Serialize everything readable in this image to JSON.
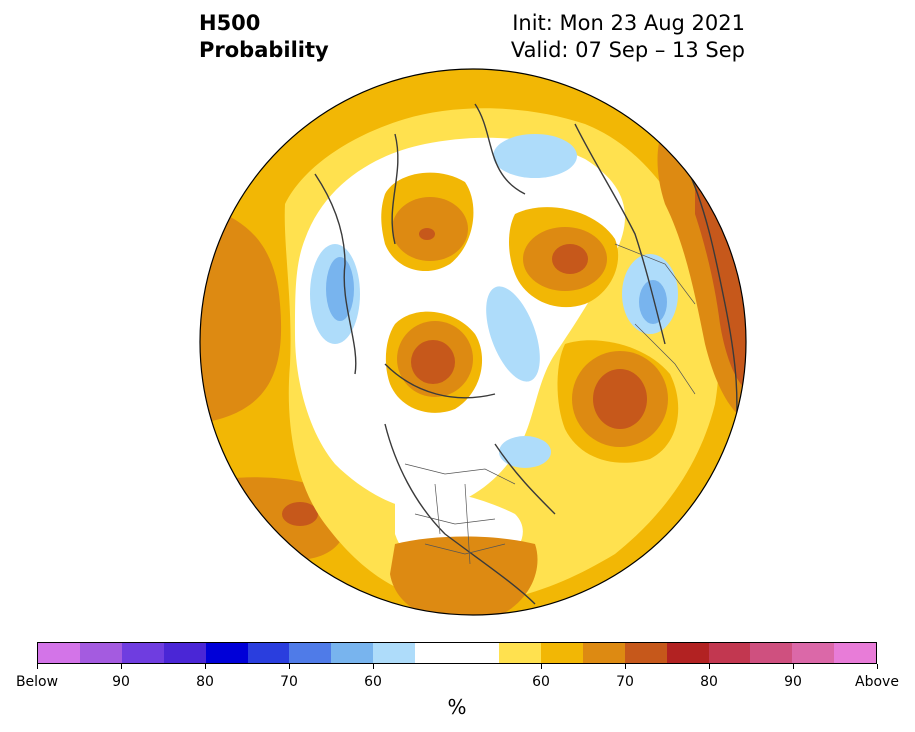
{
  "title": {
    "left_line1": "H500",
    "left_line2": "Probability",
    "right_line1": "Init: Mon 23 Aug 2021",
    "right_line2": "Valid: 07 Sep – 13 Sep"
  },
  "map": {
    "projection": "north-polar-stereographic",
    "background_color": "#F2B705"
  },
  "colorbar": {
    "unit": "%",
    "colors": [
      "#D374E8",
      "#A45BE0",
      "#6F3DE0",
      "#4A26D6",
      "#0000D8",
      "#2A3EDE",
      "#4F7BE8",
      "#78B4EE",
      "#AEDCFA",
      "#FFFFFF",
      "#FFFFFF",
      "#FFE14F",
      "#F2B705",
      "#DD8A12",
      "#C6581B",
      "#B22222",
      "#C23750",
      "#CF507F",
      "#DB68A8",
      "#E87CD8"
    ],
    "tick_labels": [
      "Below",
      "90",
      "80",
      "70",
      "60",
      "60",
      "70",
      "80",
      "90",
      "Above"
    ]
  }
}
